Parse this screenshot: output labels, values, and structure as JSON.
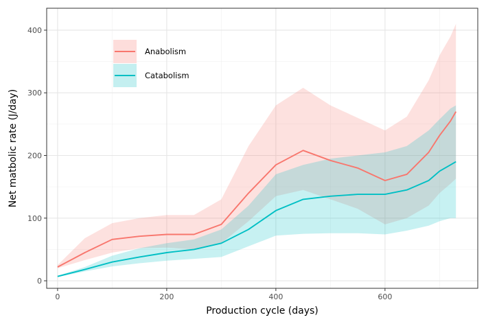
{
  "chart_data": {
    "type": "line",
    "title": "",
    "xlabel": "Production cycle (days)",
    "ylabel": "Net matbolic rate (J/day)",
    "xlim": [
      -20,
      770
    ],
    "ylim": [
      -12,
      435
    ],
    "x_ticks": [
      0,
      200,
      400,
      600
    ],
    "y_ticks": [
      0,
      100,
      200,
      300,
      400
    ],
    "grid": true,
    "legend_position": "top-left",
    "series": [
      {
        "name": "Anabolism",
        "color": "#F8766D",
        "ribbon_color": "#FDDDDB",
        "x": [
          0,
          50,
          100,
          150,
          200,
          250,
          300,
          350,
          400,
          450,
          500,
          550,
          600,
          640,
          680,
          700,
          720,
          730
        ],
        "y": [
          22,
          45,
          66,
          71,
          74,
          74,
          90,
          140,
          185,
          208,
          192,
          180,
          160,
          170,
          205,
          232,
          255,
          270
        ],
        "lower": [
          20,
          33,
          45,
          52,
          53,
          50,
          60,
          95,
          135,
          145,
          130,
          115,
          90,
          100,
          120,
          140,
          155,
          163
        ],
        "upper": [
          25,
          68,
          92,
          100,
          105,
          105,
          130,
          215,
          280,
          308,
          280,
          260,
          240,
          262,
          320,
          360,
          390,
          410
        ]
      },
      {
        "name": "Catabolism",
        "color": "#00BFC4",
        "ribbon_color": "#C4EFF0",
        "x": [
          0,
          50,
          100,
          150,
          200,
          250,
          300,
          350,
          400,
          450,
          500,
          550,
          600,
          640,
          680,
          700,
          720,
          730
        ],
        "y": [
          7,
          18,
          30,
          38,
          45,
          50,
          60,
          82,
          112,
          130,
          135,
          138,
          138,
          145,
          160,
          175,
          185,
          190
        ],
        "lower": [
          6,
          15,
          23,
          28,
          32,
          35,
          38,
          55,
          72,
          75,
          76,
          76,
          74,
          80,
          88,
          95,
          100,
          100
        ],
        "upper": [
          8,
          22,
          40,
          52,
          60,
          66,
          82,
          120,
          170,
          185,
          195,
          200,
          205,
          215,
          240,
          258,
          275,
          280
        ]
      }
    ]
  }
}
